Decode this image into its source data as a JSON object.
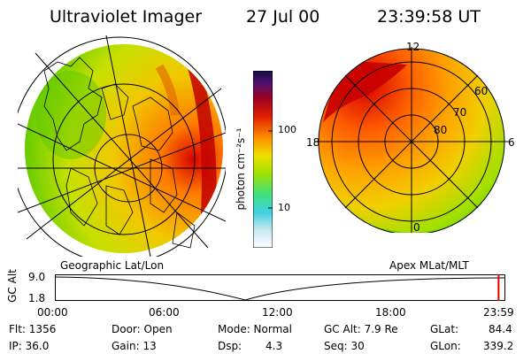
{
  "header": {
    "app_title": "Ultraviolet Imager",
    "date": "27 Jul 00",
    "time": "23:39:58 UT"
  },
  "colorbar": {
    "label": "photon cm⁻²s⁻¹",
    "ticks": [
      "100",
      "10"
    ]
  },
  "left_map": {
    "caption": "Geographic Lat/Lon"
  },
  "right_map": {
    "caption": "Apex MLat/MLT",
    "mlt_labels": [
      "12",
      "18",
      "6",
      "0"
    ],
    "mlat_labels": [
      "60",
      "70",
      "80"
    ]
  },
  "timeline": {
    "axis_label": "GC Alt",
    "y_ticks": [
      "9.0",
      "1.8"
    ],
    "x_ticks": [
      "00:00",
      "06:00",
      "12:00",
      "18:00",
      "23:59"
    ],
    "current_time_fraction": 0.985
  },
  "status": {
    "flt": "Flt: 1356",
    "ip": "IP: 36.0",
    "door": "Door: Open",
    "gain": "Gain: 13",
    "mode": "Mode: Normal",
    "dsp": "Dsp:",
    "dsp_value": "4.3",
    "gc_alt": "GC Alt: 7.9 Re",
    "seq": "Seq: 30",
    "glat": "GLat:",
    "glat_value": "84.4",
    "glon": "GLon:",
    "glon_value": "339.2"
  },
  "colors": {
    "aurora_hot": "#d80000",
    "aurora_orange": "#ff8c00",
    "aurora_yellow": "#e8e000",
    "aurora_green": "#58c800",
    "colorbar_stops": [
      "#e0e0e0",
      "#40d0e0",
      "#40e080",
      "#a0e000",
      "#f0e000",
      "#ff9000",
      "#e02000",
      "#a00020",
      "#501070",
      "#202060"
    ]
  }
}
